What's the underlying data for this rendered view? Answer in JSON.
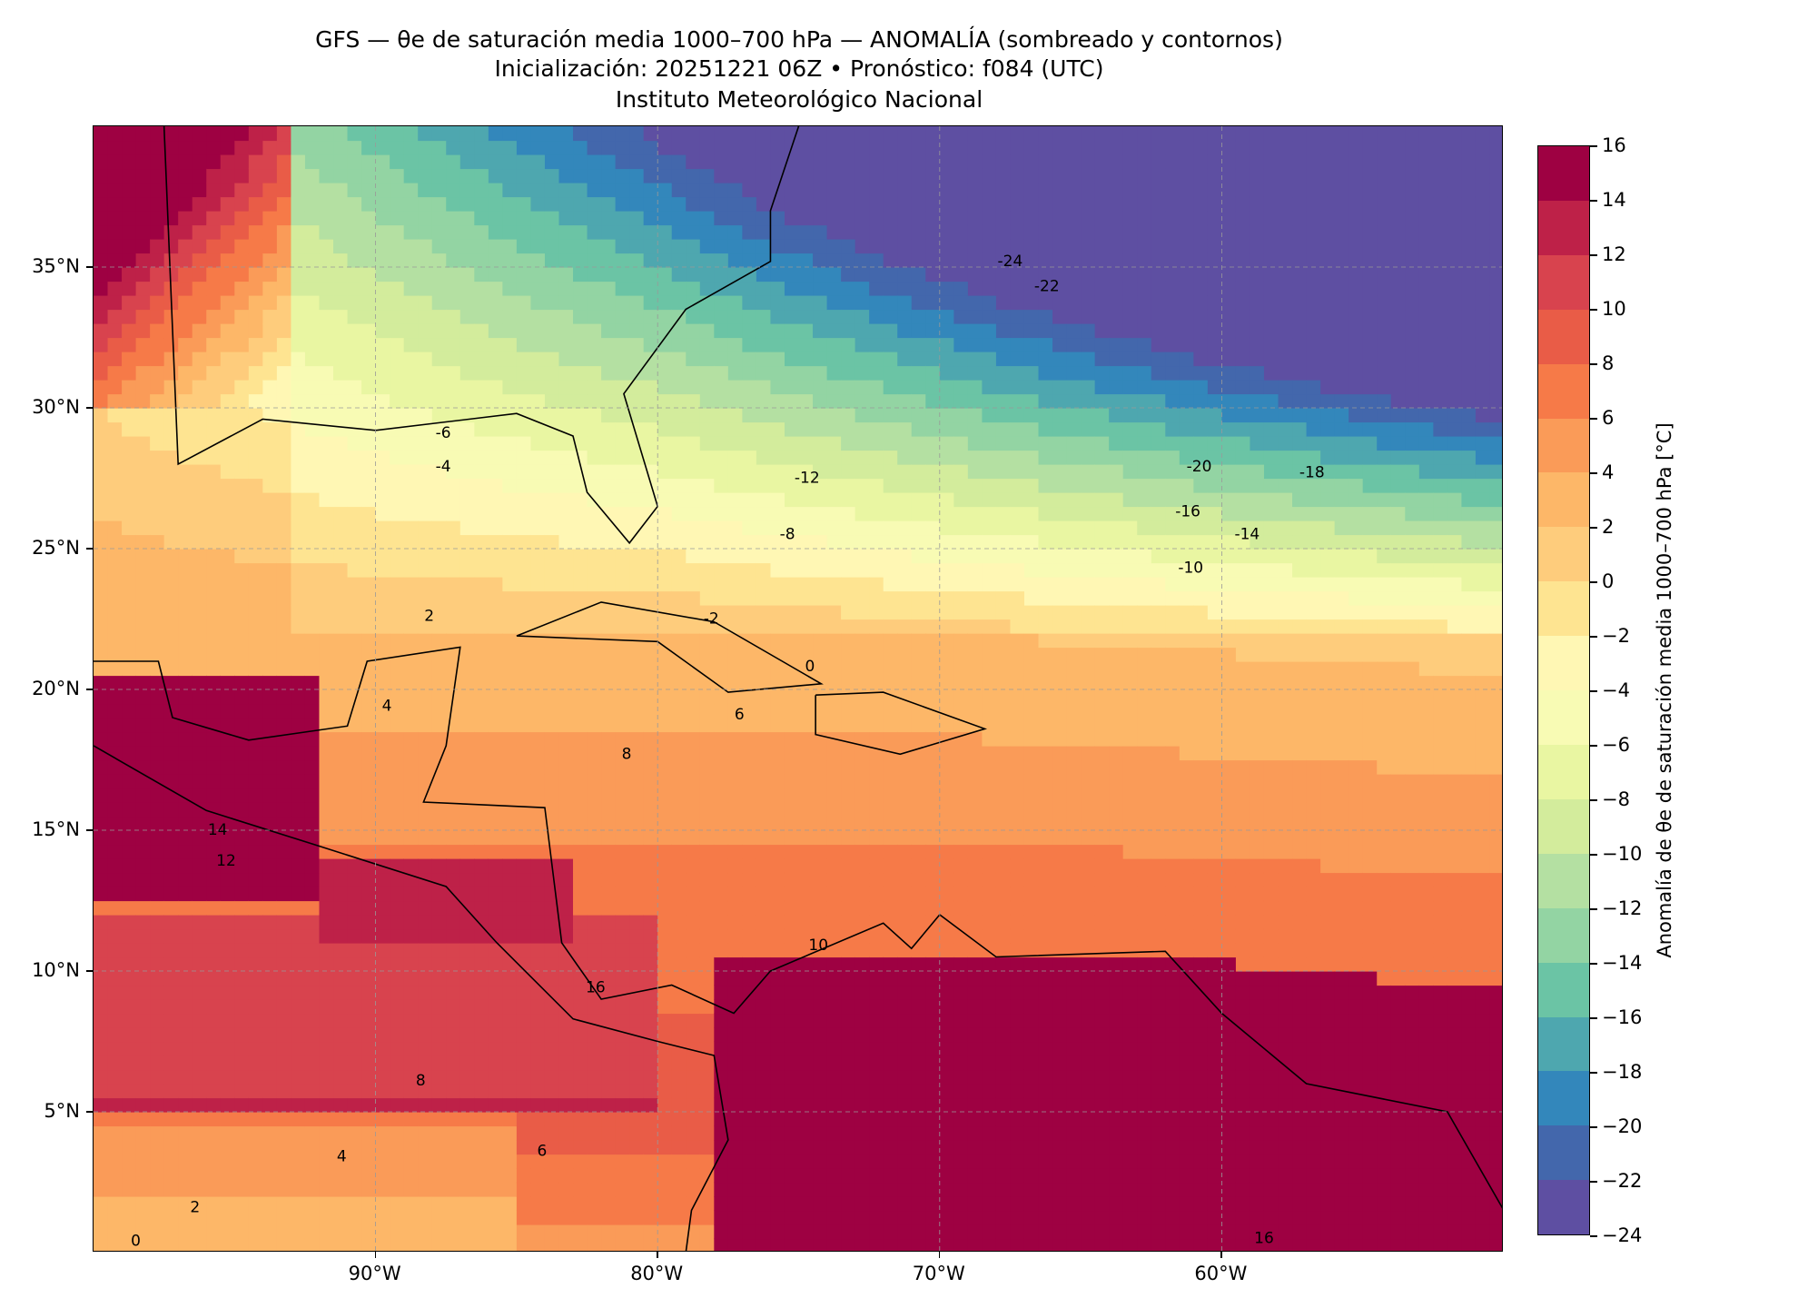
{
  "title": {
    "line1": "GFS — θe de saturación media 1000–700 hPa — ANOMALÍA (sombreado y contornos)",
    "line2": "Inicialización: 20251221 06Z   •   Pronóstico: f084 (UTC)",
    "line3": "Instituto Meteorológico Nacional"
  },
  "chart_data": {
    "type": "heatmap",
    "projection": "PlateCarree",
    "extent": {
      "lon": [
        -100,
        -50
      ],
      "lat": [
        0,
        40
      ]
    },
    "x_ticks": [
      {
        "value": -90,
        "label": "90°W"
      },
      {
        "value": -80,
        "label": "80°W"
      },
      {
        "value": -70,
        "label": "70°W"
      },
      {
        "value": -60,
        "label": "60°W"
      }
    ],
    "y_ticks": [
      {
        "value": 35,
        "label": "35°N"
      },
      {
        "value": 30,
        "label": "30°N"
      },
      {
        "value": 25,
        "label": "25°N"
      },
      {
        "value": 20,
        "label": "20°N"
      },
      {
        "value": 15,
        "label": "15°N"
      },
      {
        "value": 10,
        "label": "10°N"
      },
      {
        "value": 5,
        "label": "5°N"
      }
    ],
    "grid": true,
    "colorbar": {
      "label": "Anomalía de θe de saturación media 1000–700 hPa [°C]",
      "levels": [
        16,
        14,
        12,
        10,
        8,
        6,
        4,
        2,
        0,
        -2,
        -4,
        -6,
        -8,
        -10,
        -12,
        -14,
        -16,
        -18,
        -20,
        -22,
        -24
      ],
      "tick_labels": [
        "16",
        "14",
        "12",
        "10",
        "8",
        "6",
        "4",
        "2",
        "0",
        "−2",
        "−4",
        "−6",
        "−8",
        "−10",
        "−12",
        "−14",
        "−16",
        "−18",
        "−20",
        "−22",
        "−24"
      ],
      "colors": [
        "#9e0142",
        "#be2148",
        "#d8434e",
        "#e95c47",
        "#f67a48",
        "#fa9b58",
        "#fdb768",
        "#fecc7c",
        "#fee491",
        "#fff7b4",
        "#f8fbb4",
        "#e9f6a2",
        "#d3ec9c",
        "#b4e0a2",
        "#93d4a3",
        "#6bc4a5",
        "#4ea7af",
        "#3387bb",
        "#4367ac",
        "#5e4fa2"
      ]
    },
    "contour_labels": [
      {
        "lon": -67.5,
        "lat": 35.2,
        "text": "-24"
      },
      {
        "lon": -66.2,
        "lat": 34.3,
        "text": "-22"
      },
      {
        "lon": -60.8,
        "lat": 27.9,
        "text": "-20"
      },
      {
        "lon": -56.8,
        "lat": 27.7,
        "text": "-18"
      },
      {
        "lon": -61.2,
        "lat": 26.3,
        "text": "-16"
      },
      {
        "lon": -59.1,
        "lat": 25.5,
        "text": "-14"
      },
      {
        "lon": -74.7,
        "lat": 27.5,
        "text": "-12"
      },
      {
        "lon": -61.1,
        "lat": 24.3,
        "text": "-10"
      },
      {
        "lon": -75.4,
        "lat": 25.5,
        "text": "-8"
      },
      {
        "lon": -87.6,
        "lat": 29.1,
        "text": "-6"
      },
      {
        "lon": -87.6,
        "lat": 27.9,
        "text": "-4"
      },
      {
        "lon": -78.1,
        "lat": 22.5,
        "text": "-2"
      },
      {
        "lon": -74.6,
        "lat": 20.8,
        "text": "0"
      },
      {
        "lon": -88.1,
        "lat": 22.6,
        "text": "2"
      },
      {
        "lon": -89.6,
        "lat": 19.4,
        "text": "4"
      },
      {
        "lon": -77.1,
        "lat": 19.1,
        "text": "6"
      },
      {
        "lon": -81.1,
        "lat": 17.7,
        "text": "8"
      },
      {
        "lon": -74.3,
        "lat": 10.9,
        "text": "10"
      },
      {
        "lon": -95.3,
        "lat": 13.9,
        "text": "12"
      },
      {
        "lon": -95.6,
        "lat": 15.0,
        "text": "14"
      },
      {
        "lon": -82.2,
        "lat": 9.4,
        "text": "16"
      },
      {
        "lon": -88.4,
        "lat": 6.1,
        "text": "8"
      },
      {
        "lon": -91.2,
        "lat": 3.4,
        "text": "4"
      },
      {
        "lon": -84.1,
        "lat": 3.6,
        "text": "6"
      },
      {
        "lon": -96.4,
        "lat": 1.6,
        "text": "2"
      },
      {
        "lon": -98.5,
        "lat": 0.4,
        "text": "0"
      },
      {
        "lon": -58.5,
        "lat": 0.5,
        "text": "16"
      }
    ]
  }
}
